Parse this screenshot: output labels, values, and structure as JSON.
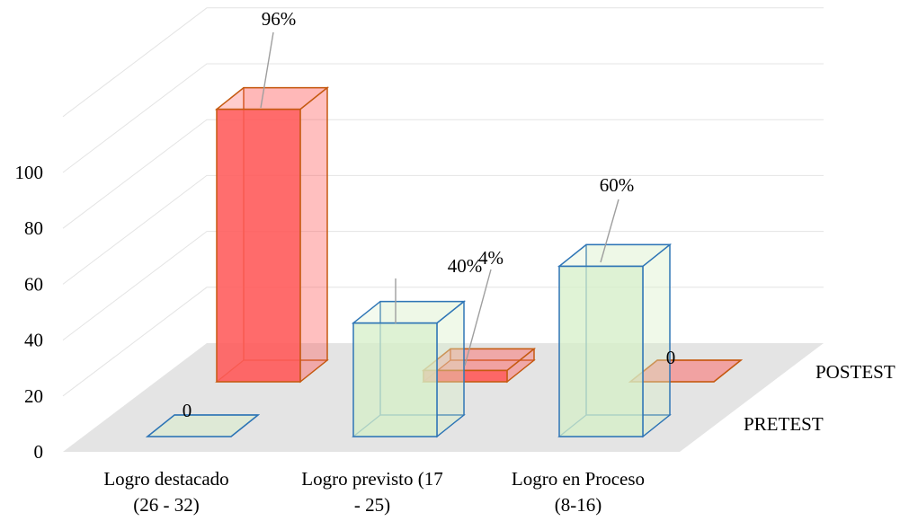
{
  "chart_data": {
    "type": "bar",
    "subtype": "3d-column",
    "title": "",
    "xlabel": "",
    "ylabel": "",
    "ylim": [
      0,
      100
    ],
    "yticks": [
      0,
      20,
      40,
      60,
      80,
      100
    ],
    "grid": true,
    "categories": [
      [
        "Logro destacado",
        "(26 - 32)"
      ],
      [
        "Logro previsto (17",
        "- 25)"
      ],
      [
        "Logro en Proceso",
        "(8-16)"
      ]
    ],
    "series": [
      {
        "name": "PRETEST",
        "values": [
          0,
          40,
          60
        ],
        "labels": [
          "0",
          "40%",
          "60%"
        ],
        "color": "#d6efc8",
        "edge": "#2e75b6"
      },
      {
        "name": "POSTEST",
        "values": [
          96,
          4,
          0
        ],
        "labels": [
          "96%",
          "4%",
          "0"
        ],
        "color": "#ff5a5a",
        "edge": "#c55a11"
      }
    ]
  }
}
